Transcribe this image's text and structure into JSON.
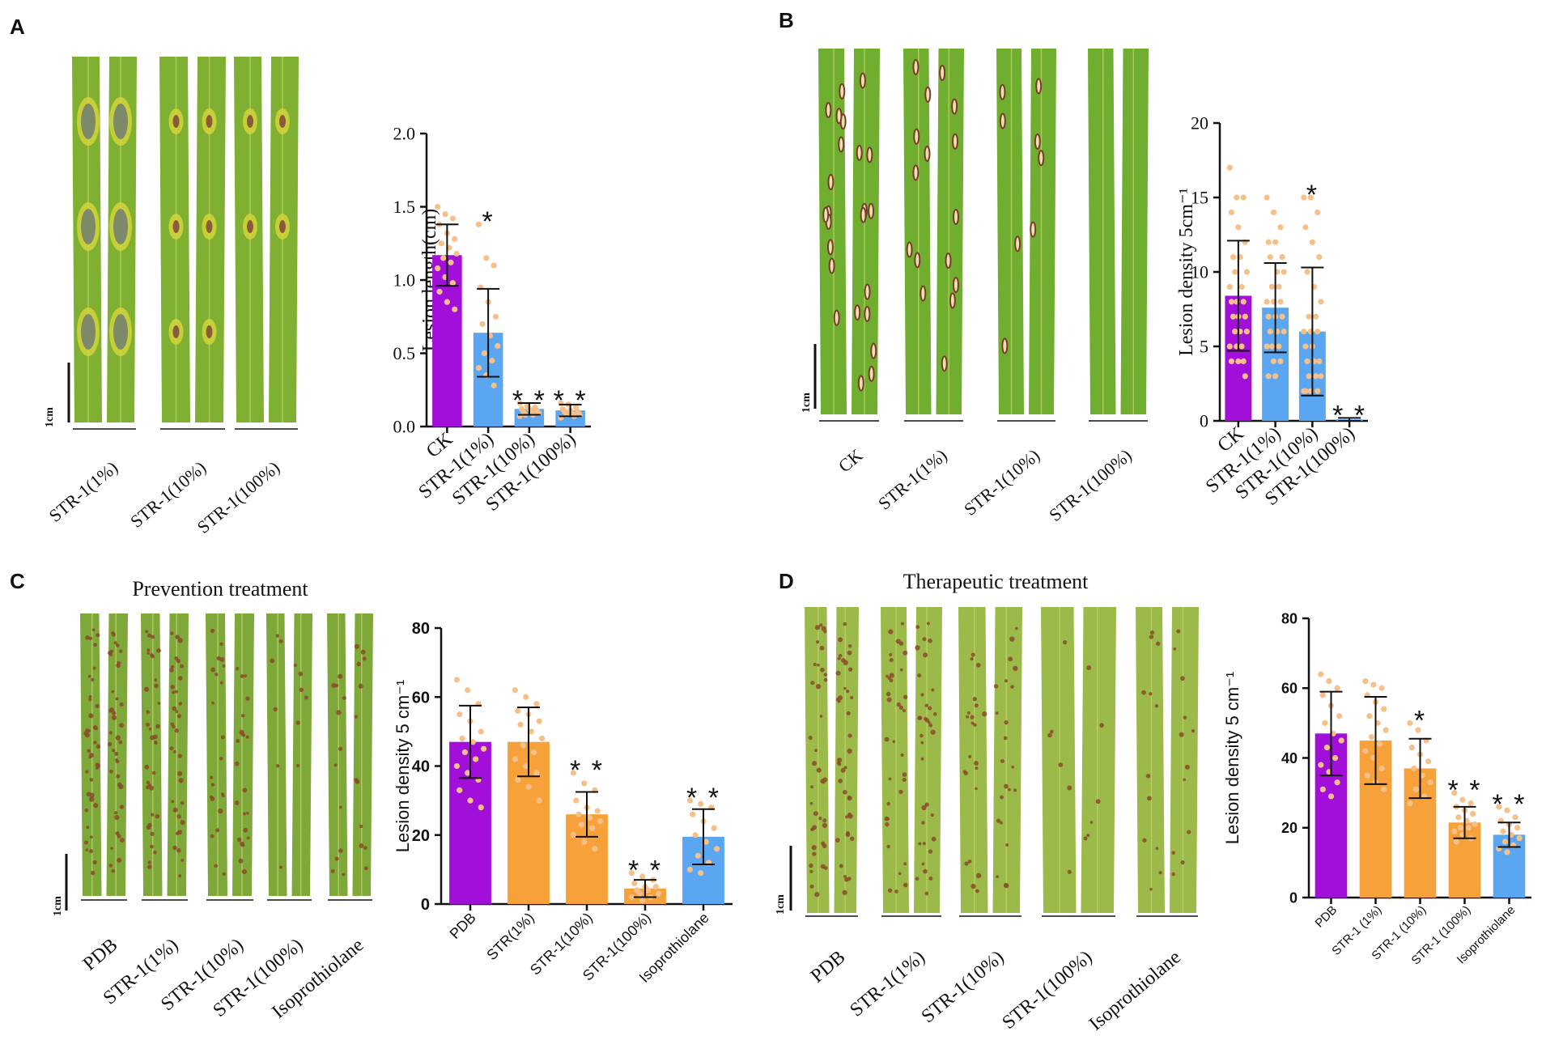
{
  "panels": [
    {
      "letter": "A",
      "scale_label": "1cm",
      "photo_groups": [
        "STR-1(1%)",
        "STR-1(10%)",
        "STR-1(100%)"
      ],
      "leaf_style": "large",
      "leaf_color": "#7fb032",
      "spot_color": "#8a5a3a",
      "chart": {
        "type": "bar",
        "title": "",
        "ylabel": "Lesion length(cm)",
        "categories": [
          "CK",
          "STR-1(1%)",
          "STR-1(10%)",
          "STR-1(100%)"
        ],
        "values": [
          1.17,
          0.64,
          0.12,
          0.11
        ],
        "errors": [
          0.21,
          0.3,
          0.04,
          0.04
        ],
        "significance": [
          "",
          "*",
          "**",
          "**"
        ],
        "colors": [
          "#a10fd8",
          "#5aa6f0",
          "#5aa6f0",
          "#5aa6f0"
        ],
        "ylim": [
          0,
          2.0
        ],
        "yticks": [
          "0.0",
          "0.5",
          "1.0",
          "1.5",
          "2.0"
        ],
        "ytick_values": [
          0,
          0.5,
          1.0,
          1.5,
          2.0
        ],
        "points": [
          [
            1.5,
            1.45,
            1.42,
            1.38,
            1.32,
            1.28,
            1.25,
            1.22,
            1.18,
            1.15,
            1.12,
            1.08,
            1.02,
            0.98,
            0.92,
            0.85,
            0.8
          ],
          [
            1.38,
            1.15,
            1.1,
            0.95,
            0.85,
            0.75,
            0.7,
            0.62,
            0.55,
            0.5,
            0.45,
            0.4,
            0.35,
            0.28
          ],
          [
            0.16,
            0.14,
            0.13,
            0.12,
            0.12,
            0.11,
            0.1,
            0.1,
            0.09,
            0.08,
            0.08,
            0.07
          ],
          [
            0.16,
            0.15,
            0.13,
            0.12,
            0.11,
            0.1,
            0.1,
            0.09,
            0.08,
            0.08,
            0.07,
            0.06
          ]
        ]
      }
    },
    {
      "letter": "B",
      "scale_label": "1cm",
      "photo_groups": [
        "CK",
        "STR-1(1%)",
        "STR-1(10%)",
        "STR-1(100%)"
      ],
      "leaf_style": "diamond",
      "leaf_color": "#6fae2e",
      "spot_color": "#7a3a2a",
      "chart": {
        "type": "bar",
        "title": "",
        "ylabel": "Lesion density 5cm⁻¹",
        "categories": [
          "CK",
          "STR-1(1%)",
          "STR-1(10%)",
          "STR-1(100%)"
        ],
        "values": [
          8.4,
          7.6,
          6.0,
          0.1
        ],
        "errors": [
          3.7,
          3.0,
          4.3,
          0.1
        ],
        "significance": [
          "",
          "",
          "*",
          "**"
        ],
        "colors": [
          "#a10fd8",
          "#5aa6f0",
          "#5aa6f0",
          "#5aa6f0"
        ],
        "ylim": [
          0,
          20
        ],
        "yticks": [
          "0",
          "5",
          "10",
          "15",
          "20"
        ],
        "ytick_values": [
          0,
          5,
          10,
          15,
          20
        ],
        "points": [
          [
            17,
            15,
            15,
            14,
            13,
            12,
            11,
            11,
            10,
            10,
            9,
            9,
            8,
            8,
            8,
            7,
            7,
            7,
            6,
            6,
            6,
            5,
            5,
            5,
            4,
            4,
            4,
            3
          ],
          [
            15,
            14,
            13,
            12,
            12,
            11,
            11,
            10,
            10,
            9,
            9,
            8,
            8,
            8,
            7,
            7,
            7,
            6,
            6,
            6,
            5,
            5,
            5,
            4,
            4,
            3,
            3
          ],
          [
            15,
            15,
            14,
            13,
            12,
            11,
            10,
            9,
            8,
            7,
            7,
            6,
            6,
            6,
            5,
            5,
            4,
            4,
            4,
            3,
            3,
            3,
            2,
            2,
            2,
            2
          ],
          []
        ]
      }
    },
    {
      "letter": "C",
      "title": "Prevention treatment",
      "scale_label": "1cm",
      "photo_groups": [
        "PDB",
        "STR-1(1%)",
        "STR-1(10%)",
        "STR-1(100%)",
        "Isoprothiolane"
      ],
      "leaf_style": "speckled",
      "leaf_color": "#7fa83a",
      "spot_color": "#8a4a2a",
      "chart": {
        "type": "bar",
        "title": "",
        "ylabel": "Lesion density 5 cm⁻¹",
        "categories": [
          "PDB",
          "STR(1%)",
          "STR-1(10%)",
          "STR-1(100%)",
          "Isoprothiolane"
        ],
        "values": [
          47,
          47,
          26,
          4.5,
          19.5
        ],
        "errors": [
          10.5,
          10,
          6.5,
          2.5,
          8
        ],
        "significance": [
          "",
          "",
          "**",
          "**",
          "**"
        ],
        "colors": [
          "#a10fd8",
          "#f7a13a",
          "#f7a13a",
          "#f7a13a",
          "#5aa6f0"
        ],
        "ylim": [
          0,
          80
        ],
        "yticks": [
          "0",
          "20",
          "40",
          "60",
          "80"
        ],
        "ytick_values": [
          0,
          20,
          40,
          60,
          80
        ],
        "points": [
          [
            65,
            62,
            58,
            55,
            53,
            50,
            48,
            47,
            45,
            44,
            42,
            40,
            38,
            36,
            33,
            30,
            28
          ],
          [
            62,
            60,
            58,
            56,
            55,
            53,
            52,
            50,
            48,
            46,
            44,
            42,
            40,
            38,
            36,
            34,
            30
          ],
          [
            38,
            35,
            33,
            30,
            28,
            27,
            26,
            25,
            24,
            23,
            22,
            20,
            18,
            16
          ],
          [
            9,
            8,
            7,
            6,
            5,
            5,
            4,
            4,
            3,
            3,
            2,
            2,
            1
          ],
          [
            30,
            29,
            28,
            26,
            24,
            22,
            20,
            18,
            16,
            14,
            12,
            10,
            9
          ]
        ]
      }
    },
    {
      "letter": "D",
      "title": "Therapeutic treatment",
      "scale_label": "1cm",
      "photo_groups": [
        "PDB",
        "STR-1(1%)",
        "STR-1(10%)",
        "STR-1(100%)",
        "Isoprothiolane"
      ],
      "leaf_style": "speckled",
      "leaf_color": "#9cba4a",
      "spot_color": "#8a4a2a",
      "chart": {
        "type": "bar",
        "title": "",
        "ylabel": "Lesion density 5 cm⁻¹",
        "categories": [
          "PDB",
          "STR-1 (1%)",
          "STR-1 (10%)",
          "STR-1 (100%)",
          "Isoprothiolane"
        ],
        "values": [
          47,
          45,
          37,
          21.5,
          18
        ],
        "errors": [
          12,
          12.5,
          8.5,
          4.5,
          3.5
        ],
        "significance": [
          "",
          "",
          "*",
          "**",
          "**"
        ],
        "colors": [
          "#a10fd8",
          "#f7a13a",
          "#f7a13a",
          "#f7a13a",
          "#5aa6f0"
        ],
        "ylim": [
          0,
          80
        ],
        "yticks": [
          "0",
          "20",
          "40",
          "60",
          "80"
        ],
        "ytick_values": [
          0,
          20,
          40,
          60,
          80
        ],
        "points": [
          [
            64,
            62,
            60,
            58,
            55,
            52,
            50,
            47,
            45,
            43,
            40,
            38,
            36,
            33,
            31,
            29
          ],
          [
            62,
            61,
            60,
            58,
            56,
            54,
            52,
            50,
            48,
            46,
            44,
            42,
            40,
            37,
            35,
            33,
            31
          ],
          [
            50,
            48,
            45,
            43,
            41,
            39,
            37,
            35,
            33,
            31,
            29,
            27
          ],
          [
            30,
            28,
            27,
            26,
            25,
            24,
            23,
            22,
            21,
            20,
            20,
            19,
            18,
            17,
            16
          ],
          [
            26,
            25,
            23,
            22,
            21,
            20,
            19,
            18,
            17,
            16,
            15,
            14,
            13
          ]
        ]
      }
    }
  ]
}
